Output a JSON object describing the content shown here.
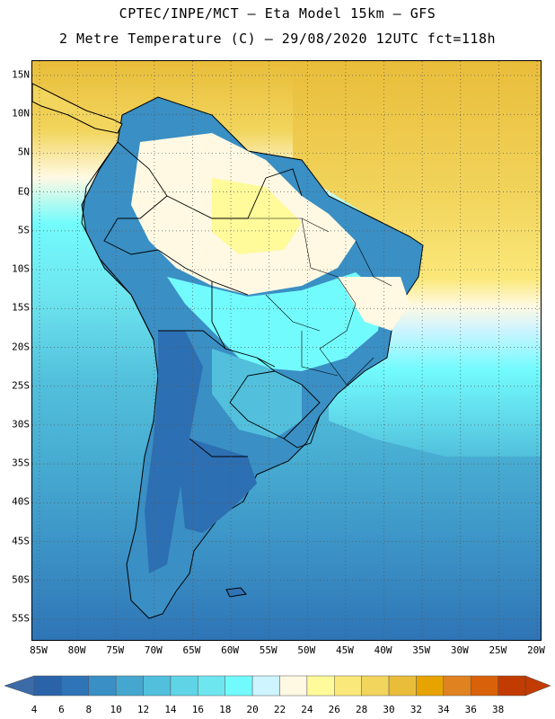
{
  "header": {
    "title_line1": "CPTEC/INPE/MCT –  Eta Model 15km – GFS",
    "title_line2": "2 Metre Temperature (C) – 29/08/2020 12UTC fct=118h"
  },
  "map": {
    "projection": "lat-lon",
    "lon_range": [
      -85,
      -20
    ],
    "lat_range": [
      -58,
      17
    ],
    "latitude_labels": [
      "15N",
      "10N",
      "5N",
      "EQ",
      "5S",
      "10S",
      "15S",
      "20S",
      "25S",
      "30S",
      "35S",
      "40S",
      "45S",
      "50S",
      "55S"
    ],
    "longitude_labels": [
      "85W",
      "80W",
      "75W",
      "70W",
      "65W",
      "60W",
      "55W",
      "50W",
      "45W",
      "40W",
      "35W",
      "30W",
      "25W",
      "20W"
    ],
    "grid": "dotted",
    "ocean_color": "#3a8fc4",
    "land_color": "#2d6fb3"
  },
  "colorbar": {
    "labels": [
      "4",
      "6",
      "8",
      "10",
      "12",
      "14",
      "16",
      "18",
      "20",
      "22",
      "24",
      "26",
      "28",
      "30",
      "32",
      "34",
      "36",
      "38"
    ],
    "colors": [
      "#2a63a8",
      "#2e74b6",
      "#3a8fc4",
      "#45a7cf",
      "#52c0dc",
      "#5fd4e6",
      "#6ee6ef",
      "#72fbfd",
      "#cdf4ff",
      "#fff9e3",
      "#fffa9a",
      "#fbe87a",
      "#f2d55d",
      "#e9bd3a",
      "#e7a300",
      "#e08220",
      "#d96109",
      "#c23b00"
    ],
    "left_arrow_color": "#3c6ca8",
    "right_arrow_color": "#c23b00"
  }
}
